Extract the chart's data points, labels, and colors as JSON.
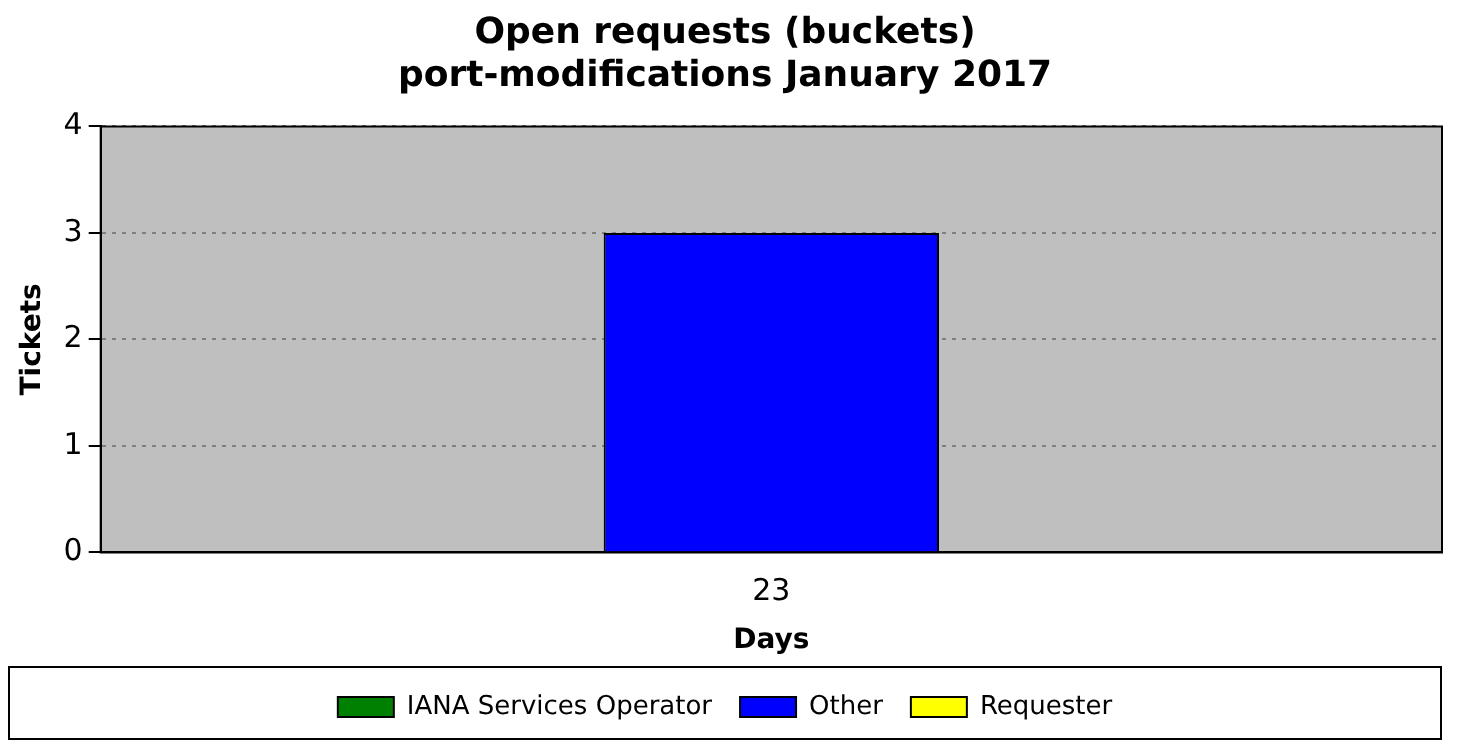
{
  "chart_data": {
    "type": "bar",
    "title": "Open requests (buckets)",
    "subtitle": "port-modifications January 2017",
    "xlabel": "Days",
    "ylabel": "Tickets",
    "categories": [
      "23"
    ],
    "stacked": true,
    "series": [
      {
        "name": "IANA Services Operator",
        "color": "#008000",
        "values": [
          0
        ]
      },
      {
        "name": "Other",
        "color": "#0000ff",
        "values": [
          3
        ]
      },
      {
        "name": "Requester",
        "color": "#ffff00",
        "values": [
          0
        ]
      }
    ],
    "ylim": [
      0,
      4
    ],
    "yticks": [
      0,
      1,
      2,
      3,
      4
    ],
    "grid": "y",
    "legend": "bottom"
  }
}
